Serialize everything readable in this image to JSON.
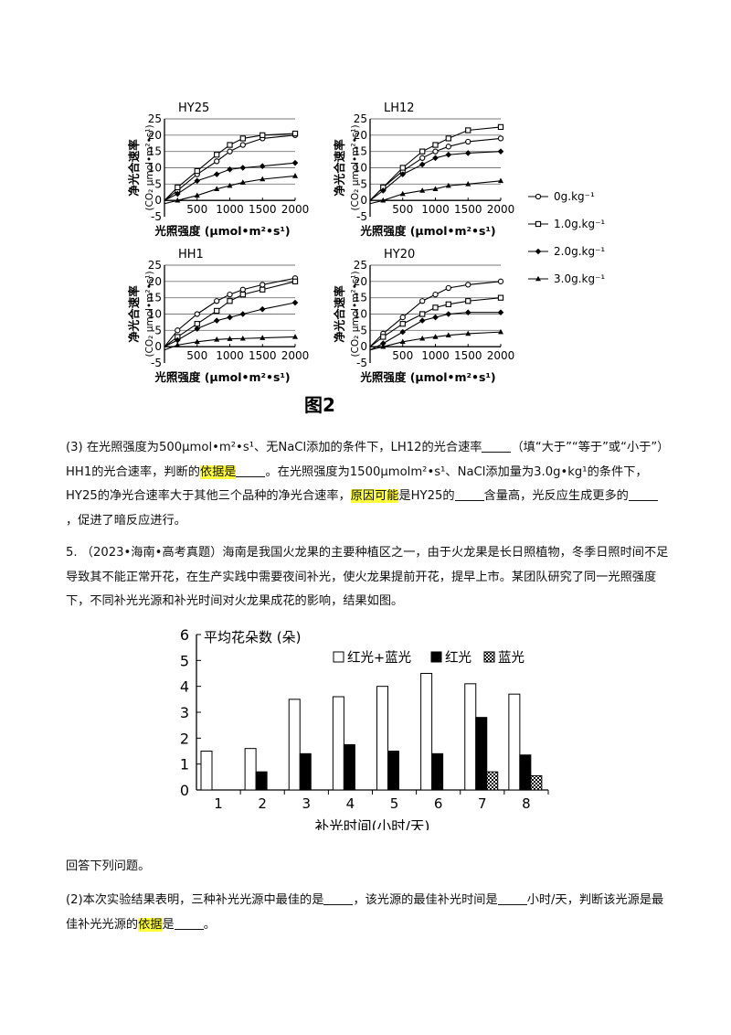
{
  "fig2": {
    "caption": "图2",
    "ylabel": "净光合速率",
    "ylabel_unit": "(CO₂ μmol•m²•s¹)",
    "xlabel": "光照强度 (μmol•m²•s¹)",
    "yticks": [
      "25",
      "20",
      "15",
      "10",
      "5",
      "0",
      "-5"
    ],
    "xticks": [
      "500",
      "1000",
      "1500",
      "2000"
    ],
    "legend": [
      "0g.kg⁻¹",
      "1.0g.kg⁻¹",
      "2.0g.kg⁻¹",
      "3.0g.kg⁻¹"
    ]
  },
  "q3": {
    "p1": "(3) 在光照强度为500μmol•m²•s¹、无NaCl添加的条件下，LH12的光合速率",
    "p2": "（填“大于”“等于”或“小于”）HH1的光合速率，判断的",
    "h1": "依据是",
    "p3": "。在光照强度为1500μmolm²•s¹、NaCl添加量为3.0g•kg¹的条件下，HY25的净光合速率大于其他三个品种的净光合速率，",
    "h2": "原因可能",
    "p4": "是HY25的",
    "p5": "含量高，光反应生成更多的",
    "p6": "，促进了暗反应进行。"
  },
  "q5": {
    "text": "5. （2023•海南•高考真题）海南是我国火龙果的主要种植区之一，由于火龙果是长日照植物，冬季日照时间不足导致其不能正常开花，在生产实践中需要夜间补光，使火龙果提前开花，提早上市。某团队研究了同一光照强度下，不同补光光源和补光时间对火龙果成花的影响，结果如图。"
  },
  "answer_intro": "回答下列问题。",
  "q2": {
    "p1": "(2)本次实验结果表明，三种补光光源中最佳的是",
    "p2": "，该光源的最佳补光时间是",
    "p3": "小时/天，判断该光源是最佳补光光源的",
    "h1": "依据",
    "p4": "是",
    "p5": "。"
  },
  "chart_data": [
    {
      "type": "line",
      "title": "HY25",
      "xlabel": "光照强度 (μmol•m²•s¹)",
      "ylabel": "净光合速率 (CO₂ μmol•m²•s¹)",
      "xlim": [
        0,
        2000
      ],
      "ylim": [
        -5,
        25
      ],
      "x": [
        0,
        200,
        500,
        800,
        1000,
        1200,
        1500,
        2000
      ],
      "series": [
        {
          "name": "0g.kg⁻¹",
          "values": [
            0,
            3,
            8,
            12,
            15,
            17,
            19,
            20
          ]
        },
        {
          "name": "1.0g.kg⁻¹",
          "values": [
            0,
            4,
            9,
            14,
            17,
            19,
            20,
            20.5
          ]
        },
        {
          "name": "2.0g.kg⁻¹",
          "values": [
            0,
            2,
            6,
            8,
            9.5,
            10,
            10.5,
            11.5
          ]
        },
        {
          "name": "3.0g.kg⁻¹",
          "values": [
            -1,
            0,
            1.5,
            3.5,
            4.5,
            5.5,
            6.5,
            7.5
          ]
        }
      ]
    },
    {
      "type": "line",
      "title": "LH12",
      "xlabel": "光照强度 (μmol•m²•s¹)",
      "ylabel": "净光合速率 (CO₂ μmol•m²•s¹)",
      "xlim": [
        0,
        2000
      ],
      "ylim": [
        -5,
        25
      ],
      "x": [
        0,
        200,
        500,
        800,
        1000,
        1200,
        1500,
        2000
      ],
      "series": [
        {
          "name": "0g.kg⁻¹",
          "values": [
            0,
            4,
            9,
            13,
            15,
            16.5,
            18,
            19
          ]
        },
        {
          "name": "1.0g.kg⁻¹",
          "values": [
            0,
            4,
            10,
            15,
            17,
            19,
            21.5,
            22.5
          ]
        },
        {
          "name": "2.0g.kg⁻¹",
          "values": [
            0,
            3,
            8,
            11,
            13,
            14,
            14.5,
            15
          ]
        },
        {
          "name": "3.0g.kg⁻¹",
          "values": [
            -1,
            0,
            2,
            3,
            3.5,
            4.5,
            5,
            6
          ]
        }
      ]
    },
    {
      "type": "line",
      "title": "HH1",
      "xlabel": "光照强度 (μmol•m²•s¹)",
      "ylabel": "净光合速率 (CO₂ μmol•m²•s¹)",
      "xlim": [
        0,
        2000
      ],
      "ylim": [
        -5,
        25
      ],
      "x": [
        0,
        200,
        500,
        800,
        1000,
        1200,
        1500,
        2000
      ],
      "series": [
        {
          "name": "0g.kg⁻¹",
          "values": [
            0,
            5,
            10,
            14,
            16,
            17.5,
            19,
            21
          ]
        },
        {
          "name": "1.0g.kg⁻¹",
          "values": [
            0,
            3,
            7,
            11,
            14,
            16,
            17.5,
            20
          ]
        },
        {
          "name": "2.0g.kg⁻¹",
          "values": [
            0,
            2,
            5.5,
            8,
            9,
            10,
            11.5,
            13.5
          ]
        },
        {
          "name": "3.0g.kg⁻¹",
          "values": [
            -1,
            0.5,
            1.5,
            2.2,
            2.4,
            2.5,
            2.7,
            3
          ]
        }
      ]
    },
    {
      "type": "line",
      "title": "HY20",
      "xlabel": "光照强度 (μmol•m²•s¹)",
      "ylabel": "净光合速率 (CO₂ μmol•m²•s¹)",
      "xlim": [
        0,
        2000
      ],
      "ylim": [
        -5,
        25
      ],
      "x": [
        0,
        200,
        500,
        800,
        1000,
        1200,
        1500,
        2000
      ],
      "series": [
        {
          "name": "0g.kg⁻¹",
          "values": [
            0,
            4,
            9,
            14,
            16,
            18,
            19,
            20
          ]
        },
        {
          "name": "1.0g.kg⁻¹",
          "values": [
            0,
            3,
            7,
            10,
            12,
            13,
            14,
            15
          ]
        },
        {
          "name": "2.0g.kg⁻¹",
          "values": [
            -1,
            1,
            4.5,
            8,
            9,
            10,
            10.5,
            10.5
          ]
        },
        {
          "name": "3.0g.kg⁻¹",
          "values": [
            -1,
            0,
            1.5,
            2.5,
            3,
            3.5,
            4,
            4.5
          ]
        }
      ]
    },
    {
      "type": "bar",
      "title": "平均花朵数 (朵)",
      "xlabel": "补光时间(小时/天)",
      "ylabel": "",
      "ylim": [
        0,
        6
      ],
      "yticks": [
        0,
        1,
        2,
        3,
        4,
        5,
        6
      ],
      "categories": [
        "1",
        "2",
        "3",
        "4",
        "5",
        "6",
        "7",
        "8"
      ],
      "legend_position": "top-right",
      "series": [
        {
          "name": "红光+蓝光",
          "values": [
            1.5,
            1.6,
            3.5,
            3.6,
            4.0,
            4.5,
            4.1,
            3.7
          ]
        },
        {
          "name": "红光",
          "values": [
            0,
            0.7,
            1.4,
            1.75,
            1.5,
            1.4,
            2.8,
            1.35
          ]
        },
        {
          "name": "蓝光",
          "values": [
            0,
            0,
            0,
            0,
            0,
            0,
            0.7,
            0.55
          ]
        }
      ]
    }
  ]
}
